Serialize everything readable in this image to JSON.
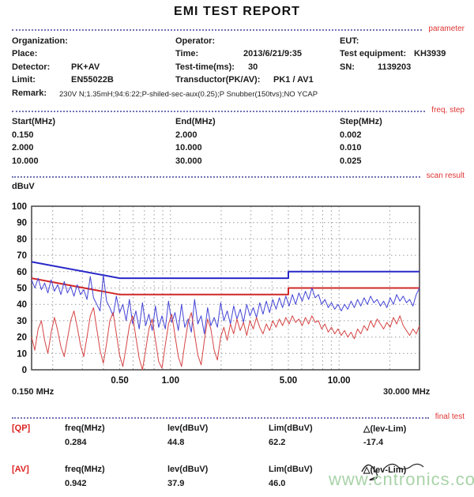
{
  "title": "EMI TEST REPORT",
  "sections": {
    "parameter": "parameter",
    "freq_step": "freq, step",
    "scan_result": "scan result",
    "final_test": "final test"
  },
  "parameters": {
    "organization_label": "Organization:",
    "organization_value": "",
    "place_label": "Place:",
    "place_value": "",
    "detector_label": "Detector:",
    "detector_value": "PK+AV",
    "limit_label": "Limit:",
    "limit_value": "EN55022B",
    "remark_label": "Remark:",
    "remark_value": "230V N;1.35mH;94:6:22;P-shiled-sec-aux(0.25);P Snubber(150tvs);NO YCAP",
    "operator_label": "Operator:",
    "operator_value": "",
    "time_label": "Time:",
    "time_value": "2013/6/21/9:35",
    "test_time_label": "Test-time(ms):",
    "test_time_value": "30",
    "transductor_label": "Transductor(PK/AV):",
    "transductor_value": "PK1  /  AV1",
    "eut_label": "EUT:",
    "eut_value": "",
    "test_equipment_label": "Test equipment:",
    "test_equipment_value": "KH3939",
    "sn_label": "SN:",
    "sn_value": "1139203"
  },
  "freq_step": {
    "headers": {
      "start": "Start(MHz)",
      "end": "End(MHz)",
      "step": "Step(MHz)"
    },
    "rows": [
      {
        "start": "0.150",
        "end": "2.000",
        "step": "0.002"
      },
      {
        "start": "2.000",
        "end": "10.000",
        "step": "0.010"
      },
      {
        "start": "10.000",
        "end": "30.000",
        "step": "0.025"
      }
    ]
  },
  "chart_data": {
    "type": "line",
    "ylabel": "dBuV",
    "x_scale": "log",
    "x_range": [
      0.15,
      30
    ],
    "y_range": [
      0,
      100
    ],
    "y_tick_step": 10,
    "x_tick_labels": [
      {
        "f": 0.5,
        "label": "0.50"
      },
      {
        "f": 1,
        "label": "1.00"
      },
      {
        "f": 5,
        "label": "5.00"
      },
      {
        "f": 10,
        "label": "10.00"
      }
    ],
    "x_gridlines": [
      0.2,
      0.3,
      0.4,
      0.5,
      0.6,
      0.7,
      0.8,
      0.9,
      1,
      2,
      3,
      4,
      5,
      6,
      7,
      8,
      9,
      10,
      20
    ],
    "x_start_label": "0.150 MHz",
    "x_end_label": "30.000 MHz",
    "grid_color": "#9a9a9a",
    "frame_color": "#444444",
    "series": [
      {
        "name": "QP limit EN55022B",
        "kind": "limit",
        "color": "#2828c8",
        "width": 2,
        "points": [
          [
            0.15,
            66
          ],
          [
            0.5,
            56
          ],
          [
            5,
            56
          ],
          [
            5,
            60
          ],
          [
            30,
            60
          ]
        ]
      },
      {
        "name": "AV limit EN55022B",
        "kind": "limit",
        "color": "#d02828",
        "width": 2,
        "points": [
          [
            0.15,
            56
          ],
          [
            0.5,
            46
          ],
          [
            5,
            46
          ],
          [
            5,
            50
          ],
          [
            30,
            50
          ]
        ]
      },
      {
        "name": "PK scan",
        "kind": "trace",
        "color": "#4343d6",
        "width": 1,
        "x_spacing": "log",
        "values": [
          55,
          50,
          56,
          49,
          53,
          47,
          55,
          48,
          52,
          46,
          54,
          47,
          51,
          45,
          52,
          46,
          49,
          43,
          57,
          44,
          40,
          36,
          58,
          42,
          38,
          33,
          45,
          35,
          40,
          30,
          43,
          28,
          36,
          25,
          41,
          27,
          34,
          24,
          39,
          26,
          33,
          25,
          42,
          29,
          35,
          24,
          40,
          26,
          31,
          23,
          43,
          28,
          33,
          22,
          38,
          27,
          32,
          26,
          41,
          30,
          36,
          28,
          39,
          31,
          37,
          29,
          40,
          33,
          38,
          32,
          41,
          34,
          42,
          35,
          43,
          37,
          44,
          38,
          45,
          39,
          46,
          40,
          47,
          42,
          48,
          43,
          50,
          44,
          46,
          40,
          43,
          38,
          41,
          37,
          40,
          36,
          40,
          37,
          42,
          38,
          43,
          39,
          44,
          40,
          45,
          41,
          43,
          39,
          42,
          38,
          44,
          40,
          46,
          42,
          45,
          41,
          43,
          39,
          46,
          50
        ]
      },
      {
        "name": "AV scan",
        "kind": "trace",
        "color": "#d64343",
        "width": 1,
        "x_spacing": "log",
        "values": [
          20,
          12,
          25,
          30,
          18,
          10,
          23,
          32,
          24,
          14,
          8,
          19,
          30,
          36,
          26,
          15,
          8,
          20,
          33,
          38,
          25,
          12,
          4,
          16,
          30,
          35,
          22,
          9,
          2,
          14,
          27,
          33,
          20,
          7,
          0,
          12,
          25,
          31,
          18,
          5,
          1,
          15,
          28,
          34,
          21,
          8,
          2,
          16,
          29,
          35,
          22,
          9,
          3,
          18,
          31,
          25,
          12,
          6,
          20,
          26,
          18,
          28,
          22,
          31,
          24,
          29,
          21,
          30,
          25,
          32,
          26,
          22,
          28,
          24,
          30,
          26,
          31,
          27,
          32,
          28,
          33,
          29,
          31,
          27,
          32,
          28,
          33,
          29,
          30,
          25,
          28,
          23,
          26,
          22,
          25,
          21,
          24,
          20,
          23,
          19,
          25,
          22,
          27,
          24,
          30,
          26,
          31,
          28,
          25,
          29,
          26,
          32,
          28,
          33,
          27,
          24,
          21,
          25,
          22,
          27
        ]
      }
    ]
  },
  "final_test": {
    "qp": {
      "tag": "[QP]",
      "headers": {
        "freq": "freq(MHz)",
        "lev": "lev(dBuV)",
        "lim": "Lim(dBuV)",
        "delta": "△(lev-Lim)"
      },
      "values": {
        "freq": "0.284",
        "lev": "44.8",
        "lim": "62.2",
        "delta": "-17.4"
      }
    },
    "av": {
      "tag": "[AV]",
      "headers": {
        "freq": "freq(MHz)",
        "lev": "lev(dBuV)",
        "lim": "Lim(dBuV)",
        "delta": "△(lev-Lim)"
      },
      "values": {
        "freq": "0.942",
        "lev": "37.9",
        "lim": "46.0",
        "delta": ""
      }
    }
  },
  "watermark": "www.cntronics.com",
  "colors": {
    "section_label": "#e03434",
    "separator": "#7272b4",
    "qp_blue": "#2828c8",
    "av_red": "#d02828",
    "watermark_green": "#a9d3a9"
  }
}
